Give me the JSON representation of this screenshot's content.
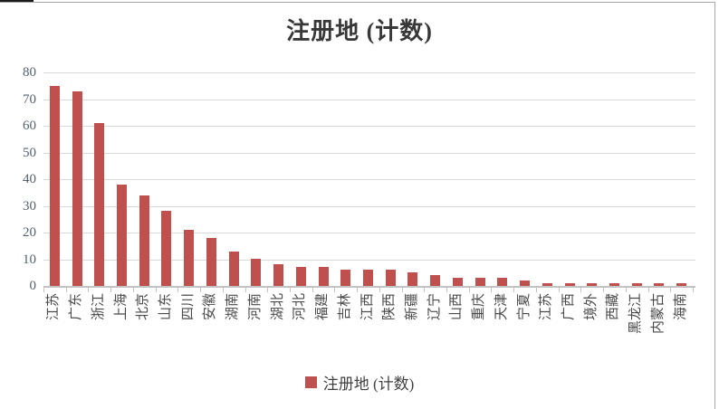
{
  "chart_data": {
    "type": "bar",
    "title": "注册地 (计数)",
    "categories": [
      "江苏",
      "广东",
      "浙江",
      "上海",
      "北京",
      "山东",
      "四川",
      "安徽",
      "湖南",
      "河南",
      "湖北",
      "河北",
      "福建",
      "吉林",
      "江西",
      "陕西",
      "新疆",
      "辽宁",
      "山西",
      "重庆",
      "天津",
      "宁夏",
      "江苏",
      "广西",
      "境外",
      "西藏",
      "黑龙江",
      "内蒙古",
      "海南"
    ],
    "values": [
      75,
      73,
      61,
      38,
      34,
      28,
      21,
      18,
      13,
      10,
      8,
      7,
      7,
      6,
      6,
      6,
      5,
      4,
      3,
      3,
      3,
      2,
      1,
      1,
      1,
      1,
      1,
      1,
      1
    ],
    "xlabel": "",
    "ylabel": "",
    "ylim": [
      0,
      80
    ],
    "yticks": [
      0,
      10,
      20,
      30,
      40,
      50,
      60,
      70,
      80
    ],
    "grid": true,
    "legend": {
      "label": "注册地 (计数)",
      "position": "bottom"
    },
    "bar_color": "#C0504D",
    "gridline_color": "#d9d9d9"
  }
}
